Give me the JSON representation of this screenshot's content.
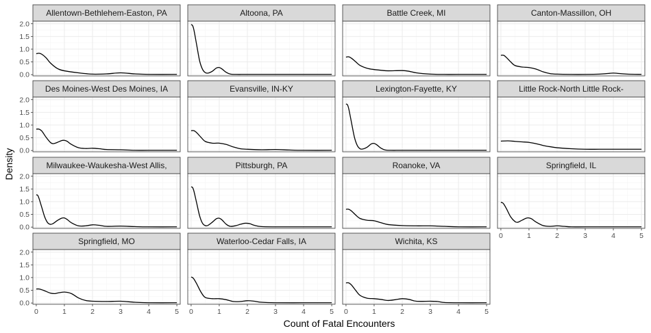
{
  "chart_data": {
    "type": "line",
    "subtype": "faceted-density",
    "xlabel": "Count of Fatal Encounters",
    "ylabel": "Density",
    "xlim": [
      -0.12,
      5.12
    ],
    "ylim": [
      -0.05,
      2.1
    ],
    "xticks": [
      0,
      1,
      2,
      3,
      4,
      5
    ],
    "yticks": [
      0.0,
      0.5,
      1.0,
      1.5,
      2.0
    ],
    "ytick_labels": [
      "0.0",
      "0.5",
      "1.0",
      "1.5",
      "2.0"
    ],
    "grid": true,
    "line_color": "#000000",
    "panel_border_color": "#333333",
    "strip_fill": "#d9d9d9",
    "grid_major_color": "#ebebeb",
    "grid_minor_color": "#f5f5f5",
    "layout": {
      "ncol": 4,
      "nrow": 4
    },
    "panels": [
      {
        "title": "Allentown-Bethlehem-Easton, PA",
        "x": [
          0,
          0.1,
          0.2,
          0.35,
          0.5,
          0.75,
          1,
          1.5,
          2,
          2.5,
          3,
          3.5,
          4,
          5
        ],
        "y": [
          0.82,
          0.84,
          0.8,
          0.66,
          0.46,
          0.24,
          0.15,
          0.07,
          0.02,
          0.03,
          0.07,
          0.03,
          0.01,
          0.01
        ]
      },
      {
        "title": "Altoona, PA",
        "x": [
          0,
          0.05,
          0.1,
          0.2,
          0.3,
          0.4,
          0.5,
          0.6,
          0.75,
          0.9,
          1,
          1.1,
          1.25,
          1.4,
          1.6,
          2,
          3,
          4,
          5
        ],
        "y": [
          1.97,
          1.93,
          1.75,
          1.15,
          0.55,
          0.22,
          0.08,
          0.06,
          0.13,
          0.26,
          0.28,
          0.22,
          0.09,
          0.02,
          0.01,
          0.01,
          0.01,
          0.01,
          0.01
        ]
      },
      {
        "title": "Battle Creek, MI",
        "x": [
          0,
          0.1,
          0.2,
          0.35,
          0.5,
          0.75,
          1,
          1.25,
          1.5,
          2,
          2.25,
          2.5,
          3,
          3.5,
          4,
          5
        ],
        "y": [
          0.69,
          0.7,
          0.64,
          0.5,
          0.36,
          0.25,
          0.2,
          0.17,
          0.15,
          0.16,
          0.13,
          0.07,
          0.02,
          0.01,
          0.01,
          0.01
        ]
      },
      {
        "title": "Canton-Massillon, OH",
        "x": [
          0,
          0.1,
          0.2,
          0.35,
          0.5,
          0.75,
          1,
          1.25,
          1.5,
          1.75,
          2,
          2.5,
          3,
          3.5,
          3.75,
          4,
          4.25,
          4.5,
          5
        ],
        "y": [
          0.76,
          0.76,
          0.67,
          0.5,
          0.36,
          0.3,
          0.28,
          0.22,
          0.11,
          0.04,
          0.02,
          0.01,
          0.01,
          0.02,
          0.04,
          0.06,
          0.04,
          0.02,
          0.01
        ]
      },
      {
        "title": "Des Moines-West Des Moines, IA",
        "x": [
          0,
          0.1,
          0.2,
          0.35,
          0.5,
          0.6,
          0.75,
          0.9,
          1,
          1.1,
          1.25,
          1.5,
          1.75,
          2,
          2.25,
          2.5,
          3,
          3.5,
          4,
          5
        ],
        "y": [
          0.84,
          0.84,
          0.76,
          0.52,
          0.32,
          0.27,
          0.32,
          0.39,
          0.4,
          0.36,
          0.24,
          0.11,
          0.08,
          0.09,
          0.07,
          0.04,
          0.03,
          0.01,
          0.01,
          0.01
        ]
      },
      {
        "title": "Evansville, IN-KY",
        "x": [
          0,
          0.1,
          0.2,
          0.35,
          0.5,
          0.75,
          1,
          1.25,
          1.5,
          1.75,
          2,
          2.5,
          3,
          3.5,
          4,
          5
        ],
        "y": [
          0.78,
          0.78,
          0.7,
          0.52,
          0.36,
          0.29,
          0.29,
          0.24,
          0.14,
          0.07,
          0.05,
          0.03,
          0.04,
          0.02,
          0.01,
          0.01
        ]
      },
      {
        "title": "Lexington-Fayette, KY",
        "x": [
          0,
          0.05,
          0.1,
          0.2,
          0.3,
          0.4,
          0.5,
          0.6,
          0.75,
          0.9,
          1,
          1.1,
          1.25,
          1.4,
          1.6,
          2,
          3,
          4,
          5
        ],
        "y": [
          1.83,
          1.8,
          1.63,
          1.07,
          0.52,
          0.2,
          0.07,
          0.06,
          0.13,
          0.26,
          0.28,
          0.22,
          0.09,
          0.02,
          0.01,
          0.01,
          0.01,
          0.01,
          0.01
        ]
      },
      {
        "title": "Little Rock-North Little Rock-",
        "x": [
          0,
          0.25,
          0.5,
          0.75,
          1,
          1.25,
          1.5,
          1.75,
          2,
          2.5,
          3,
          3.5,
          4,
          4.5,
          5
        ],
        "y": [
          0.37,
          0.38,
          0.36,
          0.34,
          0.32,
          0.27,
          0.2,
          0.15,
          0.11,
          0.07,
          0.05,
          0.05,
          0.05,
          0.05,
          0.05
        ]
      },
      {
        "title": "Milwaukee-Waukesha-West Allis,",
        "x": [
          0,
          0.05,
          0.1,
          0.2,
          0.3,
          0.4,
          0.5,
          0.6,
          0.75,
          0.9,
          1,
          1.1,
          1.25,
          1.5,
          1.75,
          2,
          2.25,
          2.5,
          3,
          3.5,
          4,
          5
        ],
        "y": [
          1.27,
          1.25,
          1.12,
          0.76,
          0.4,
          0.18,
          0.11,
          0.14,
          0.26,
          0.35,
          0.36,
          0.3,
          0.17,
          0.05,
          0.05,
          0.09,
          0.07,
          0.03,
          0.04,
          0.02,
          0.01,
          0.01
        ]
      },
      {
        "title": "Pittsburgh, PA",
        "x": [
          0,
          0.05,
          0.1,
          0.2,
          0.3,
          0.4,
          0.5,
          0.6,
          0.75,
          0.9,
          1,
          1.1,
          1.25,
          1.4,
          1.6,
          1.75,
          1.9,
          2,
          2.1,
          2.25,
          2.5,
          3,
          4,
          5
        ],
        "y": [
          1.58,
          1.56,
          1.41,
          0.93,
          0.45,
          0.16,
          0.06,
          0.07,
          0.19,
          0.33,
          0.35,
          0.28,
          0.11,
          0.03,
          0.06,
          0.11,
          0.15,
          0.15,
          0.13,
          0.07,
          0.02,
          0.01,
          0.01,
          0.01
        ]
      },
      {
        "title": "Roanoke, VA",
        "x": [
          0,
          0.1,
          0.2,
          0.35,
          0.5,
          0.75,
          1,
          1.25,
          1.5,
          2,
          2.5,
          3,
          3.5,
          4,
          5
        ],
        "y": [
          0.7,
          0.7,
          0.63,
          0.47,
          0.34,
          0.27,
          0.25,
          0.17,
          0.1,
          0.06,
          0.05,
          0.05,
          0.03,
          0.01,
          0.01
        ]
      },
      {
        "title": "Springfield, IL",
        "x": [
          0,
          0.05,
          0.1,
          0.2,
          0.35,
          0.5,
          0.6,
          0.75,
          0.9,
          1,
          1.1,
          1.25,
          1.5,
          1.75,
          2,
          2.25,
          2.5,
          3,
          4,
          5
        ],
        "y": [
          0.97,
          0.96,
          0.91,
          0.72,
          0.4,
          0.22,
          0.19,
          0.27,
          0.35,
          0.36,
          0.32,
          0.2,
          0.06,
          0.03,
          0.05,
          0.03,
          0.01,
          0.01,
          0.01,
          0.01
        ]
      },
      {
        "title": "Springfield, MO",
        "x": [
          0,
          0.1,
          0.25,
          0.5,
          0.65,
          0.75,
          1,
          1.25,
          1.5,
          1.75,
          2,
          2.5,
          3,
          3.5,
          4,
          5
        ],
        "y": [
          0.55,
          0.55,
          0.5,
          0.39,
          0.37,
          0.39,
          0.43,
          0.37,
          0.2,
          0.1,
          0.07,
          0.06,
          0.07,
          0.03,
          0.01,
          0.01
        ]
      },
      {
        "title": "Waterloo-Cedar Falls, IA",
        "x": [
          0,
          0.05,
          0.1,
          0.2,
          0.35,
          0.5,
          0.75,
          1,
          1.25,
          1.5,
          1.75,
          2,
          2.25,
          2.5,
          3,
          4,
          5
        ],
        "y": [
          1.02,
          1.0,
          0.94,
          0.75,
          0.43,
          0.22,
          0.17,
          0.17,
          0.13,
          0.06,
          0.06,
          0.09,
          0.07,
          0.03,
          0.01,
          0.01,
          0.01
        ]
      },
      {
        "title": "Wichita, KS",
        "x": [
          0,
          0.1,
          0.2,
          0.35,
          0.5,
          0.75,
          1,
          1.25,
          1.5,
          1.75,
          2,
          2.25,
          2.5,
          3,
          3.25,
          3.5,
          4,
          5
        ],
        "y": [
          0.79,
          0.79,
          0.7,
          0.49,
          0.3,
          0.19,
          0.17,
          0.14,
          0.1,
          0.13,
          0.17,
          0.14,
          0.07,
          0.07,
          0.06,
          0.02,
          0.01,
          0.01
        ]
      }
    ]
  }
}
